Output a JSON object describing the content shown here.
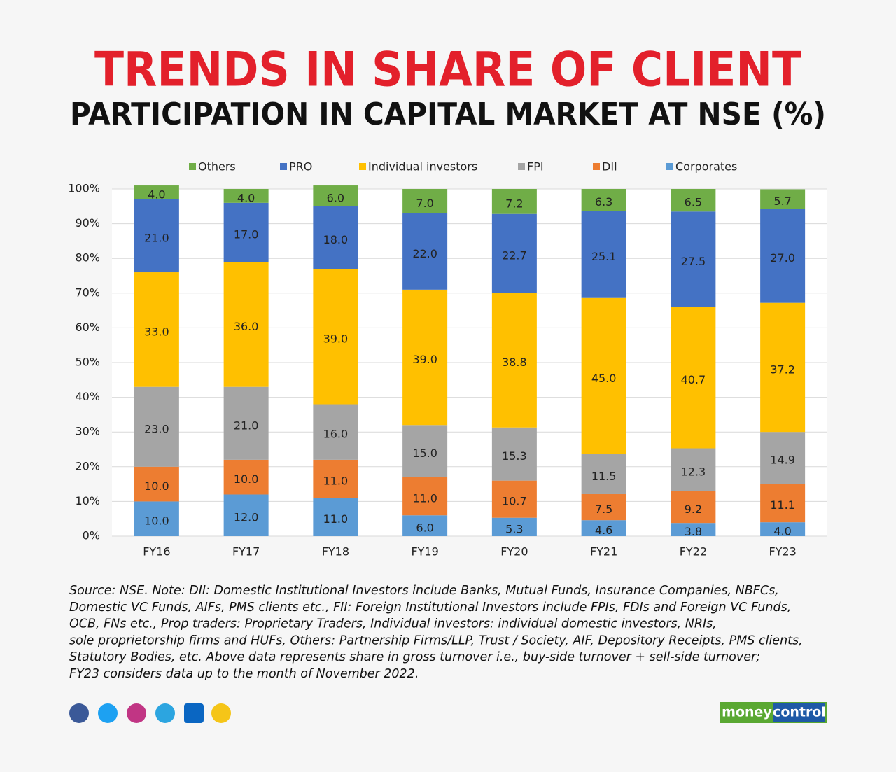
{
  "chart_data": {
    "type": "stacked_bar",
    "title": "TRENDS IN SHARE OF CLIENT",
    "subtitle": "PARTICIPATION IN CAPITAL MARKET AT NSE (%)",
    "categories": [
      "FY16",
      "FY17",
      "FY18",
      "FY19",
      "FY20",
      "FY21",
      "FY22",
      "FY23"
    ],
    "series": [
      {
        "name": "Others",
        "color": "#70ad47",
        "values": [
          4.0,
          4.0,
          6.0,
          7.0,
          7.2,
          6.3,
          6.5,
          5.7
        ],
        "value_labels": [
          "4.0",
          "4.0",
          "6.0",
          "7.0",
          "7.2",
          "6.3",
          "6.5",
          "5.7"
        ]
      },
      {
        "name": "PRO",
        "color": "#4472c4",
        "values": [
          21.0,
          17.0,
          18.0,
          22.0,
          22.7,
          25.1,
          27.5,
          27.0
        ],
        "value_labels": [
          "21.0",
          "17.0",
          "18.0",
          "22.0",
          "22.7",
          "25.1",
          "27.5",
          "27.0"
        ]
      },
      {
        "name": "Individual investors",
        "color": "#ffc000",
        "values": [
          33.0,
          36.0,
          39.0,
          39.0,
          38.8,
          45.0,
          40.7,
          37.2
        ],
        "value_labels": [
          "33.0",
          "36.0",
          "39.0",
          "39.0",
          "38.8",
          "45.0",
          "40.7",
          "37.2"
        ]
      },
      {
        "name": "FPI",
        "color": "#a5a5a5",
        "values": [
          23.0,
          21.0,
          16.0,
          15.0,
          15.3,
          11.5,
          12.3,
          14.9
        ],
        "value_labels": [
          "23.0",
          "21.0",
          "16.0",
          "15.0",
          "15.3",
          "11.5",
          "12.3",
          "14.9"
        ]
      },
      {
        "name": "DII",
        "color": "#ed7d31",
        "values": [
          10.0,
          10.0,
          11.0,
          11.0,
          10.7,
          7.5,
          9.2,
          11.1
        ],
        "value_labels": [
          "10.0",
          "10.0",
          "11.0",
          "11.0",
          "10.7",
          "7.5",
          "9.2",
          "11.1"
        ]
      },
      {
        "name": "Corporates",
        "color": "#5b9bd5",
        "values": [
          10.0,
          12.0,
          11.0,
          6.0,
          5.3,
          4.6,
          3.8,
          4.0
        ],
        "value_labels": [
          "10.0",
          "12.0",
          "11.0",
          "6.0",
          "5.3",
          "4.6",
          "3.8",
          "4.0"
        ]
      }
    ],
    "ylim": [
      0,
      100
    ],
    "yticks": [
      {
        "value": 0,
        "label": "0%"
      },
      {
        "value": 10,
        "label": "10%"
      },
      {
        "value": 20,
        "label": "20%"
      },
      {
        "value": 30,
        "label": "30%"
      },
      {
        "value": 40,
        "label": "40%"
      },
      {
        "value": 50,
        "label": "50%"
      },
      {
        "value": 60,
        "label": "60%"
      },
      {
        "value": 70,
        "label": "70%"
      },
      {
        "value": 80,
        "label": "80%"
      },
      {
        "value": 90,
        "label": "90%"
      },
      {
        "value": 100,
        "label": "100%"
      }
    ],
    "grid": true,
    "legend": "top",
    "note": [
      "Source: NSE. Note: DII: Domestic Institutional Investors include Banks, Mutual Funds, Insurance Companies, NBFCs,",
      "Domestic VC Funds, AIFs, PMS clients etc., FII: Foreign Institutional Investors include FPIs, FDIs and Foreign VC Funds,",
      "OCB, FNs etc., Prop traders: Proprietary Traders, Individual investors: individual domestic investors, NRIs,",
      "sole proprietorship firms and HUFs, Others: Partnership Firms/LLP, Trust / Society, AIF, Depository Receipts, PMS clients,",
      "Statutory Bodies, etc. Above data represents share in gross turnover i.e., buy-side turnover + sell-side turnover;",
      "FY23 considers data up to the month of November 2022."
    ]
  },
  "logo": [
    "money",
    "control"
  ]
}
